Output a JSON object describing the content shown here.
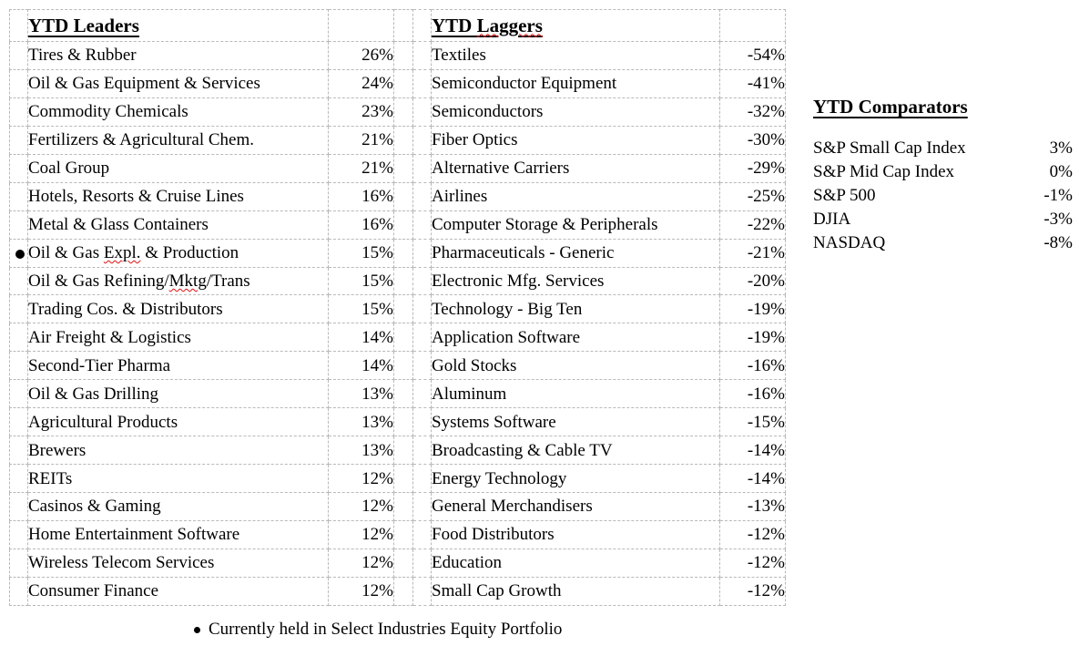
{
  "colors": {
    "grid": "#b9b9b9",
    "text": "#000000",
    "squiggle": "#e01010",
    "bg": "#ffffff"
  },
  "leaders": {
    "title": "YTD Leaders",
    "rows": [
      {
        "name": "Tires & Rubber",
        "value": "26%"
      },
      {
        "name": "Oil & Gas Equipment & Services",
        "value": "24%"
      },
      {
        "name": "Commodity Chemicals",
        "value": "23%"
      },
      {
        "name": "Fertilizers & Agricultural Chem.",
        "value": "21%"
      },
      {
        "name": "Coal Group",
        "value": "21%"
      },
      {
        "name": "Hotels, Resorts & Cruise Lines",
        "value": "16%"
      },
      {
        "name": "Metal & Glass Containers",
        "value": "16%"
      },
      {
        "name": "Oil & Gas Expl. & Production",
        "value": "15%",
        "held": true,
        "parts": [
          {
            "text": "Oil & Gas "
          },
          {
            "text": "Expl.",
            "misspelled": true
          },
          {
            "text": " & Production"
          }
        ]
      },
      {
        "name": "Oil & Gas Refining/Mktg/Trans",
        "value": "15%",
        "parts": [
          {
            "text": "Oil & Gas Refining/"
          },
          {
            "text": "Mktg",
            "misspelled": true
          },
          {
            "text": "/Trans"
          }
        ]
      },
      {
        "name": "Trading Cos. & Distributors",
        "value": "15%"
      },
      {
        "name": "Air Freight & Logistics",
        "value": "14%"
      },
      {
        "name": "Second-Tier Pharma",
        "value": "14%"
      },
      {
        "name": "Oil & Gas Drilling",
        "value": "13%"
      },
      {
        "name": "Agricultural Products",
        "value": "13%"
      },
      {
        "name": "Brewers",
        "value": "13%"
      },
      {
        "name": "REITs",
        "value": "12%"
      },
      {
        "name": "Casinos & Gaming",
        "value": "12%"
      },
      {
        "name": "Home Entertainment Software",
        "value": "12%"
      },
      {
        "name": "Wireless Telecom Services",
        "value": "12%"
      },
      {
        "name": "Consumer Finance",
        "value": "12%"
      }
    ]
  },
  "laggers": {
    "title_pre": "YTD ",
    "title_misspelled": "Laggers",
    "rows": [
      {
        "name": "Textiles",
        "value": "-54%"
      },
      {
        "name": "Semiconductor Equipment",
        "value": "-41%"
      },
      {
        "name": "Semiconductors",
        "value": "-32%"
      },
      {
        "name": "Fiber Optics",
        "value": "-30%"
      },
      {
        "name": "Alternative Carriers",
        "value": "-29%"
      },
      {
        "name": "Airlines",
        "value": "-25%"
      },
      {
        "name": "Computer Storage & Peripherals",
        "value": "-22%"
      },
      {
        "name": "Pharmaceuticals - Generic",
        "value": "-21%"
      },
      {
        "name": "Electronic Mfg. Services",
        "value": "-20%"
      },
      {
        "name": "Technology - Big Ten",
        "value": "-19%"
      },
      {
        "name": "Application Software",
        "value": "-19%"
      },
      {
        "name": "Gold Stocks",
        "value": "-16%"
      },
      {
        "name": "Aluminum",
        "value": "-16%"
      },
      {
        "name": "Systems Software",
        "value": "-15%"
      },
      {
        "name": "Broadcasting & Cable TV",
        "value": "-14%"
      },
      {
        "name": "Energy Technology",
        "value": "-14%"
      },
      {
        "name": "General Merchandisers",
        "value": "-13%"
      },
      {
        "name": "Food Distributors",
        "value": "-12%"
      },
      {
        "name": "Education",
        "value": "-12%"
      },
      {
        "name": "Small Cap Growth",
        "value": "-12%"
      }
    ]
  },
  "comparators": {
    "title": "YTD Comparators",
    "rows": [
      {
        "name": "S&P Small Cap Index",
        "value": "3%"
      },
      {
        "name": "S&P Mid Cap Index",
        "value": "0%"
      },
      {
        "name": "S&P 500",
        "value": "-1%"
      },
      {
        "name": "DJIA",
        "value": "-3%"
      },
      {
        "name": "NASDAQ",
        "value": "-8%"
      }
    ]
  },
  "footnote": {
    "text": "Currently held in Select Industries Equity Portfolio"
  }
}
